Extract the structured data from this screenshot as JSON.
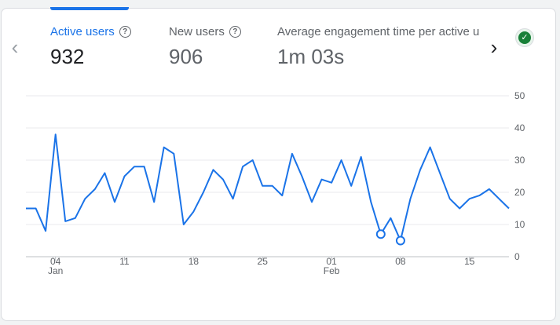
{
  "metrics": [
    {
      "label": "Active users",
      "value": "932"
    },
    {
      "label": "New users",
      "value": "906"
    },
    {
      "label": "Average engagement time per active user",
      "value": "1m 03s"
    }
  ],
  "icons": {
    "prev": "chevron-left-icon",
    "next": "chevron-right-icon",
    "help": "question-circle-icon",
    "status": "check-circle-icon"
  },
  "colors": {
    "accent": "#1a73e8",
    "line": "#1a73e8",
    "check": "#188038"
  },
  "chart_data": {
    "type": "line",
    "ylim": [
      0,
      50
    ],
    "y_ticks": [
      0,
      10,
      20,
      30,
      40,
      50
    ],
    "grid": true,
    "x_tick_labels": [
      {
        "label": "04",
        "sub": "Jan",
        "index": 3
      },
      {
        "label": "11",
        "sub": "",
        "index": 10
      },
      {
        "label": "18",
        "sub": "",
        "index": 17
      },
      {
        "label": "25",
        "sub": "",
        "index": 24
      },
      {
        "label": "01",
        "sub": "Feb",
        "index": 31
      },
      {
        "label": "08",
        "sub": "",
        "index": 38
      },
      {
        "label": "15",
        "sub": "",
        "index": 45
      }
    ],
    "series": [
      {
        "values": [
          15,
          15,
          8,
          38,
          11,
          12,
          18,
          21,
          26,
          17,
          25,
          28,
          28,
          17,
          34,
          32,
          10,
          14,
          20,
          27,
          24,
          18,
          28,
          30,
          22,
          22,
          19,
          32,
          25,
          17,
          24,
          23,
          30,
          22,
          31,
          17,
          7,
          12,
          5,
          18,
          27,
          34,
          26,
          18,
          15,
          18,
          19,
          21,
          18,
          15
        ],
        "markers": [
          36,
          38
        ]
      }
    ]
  }
}
